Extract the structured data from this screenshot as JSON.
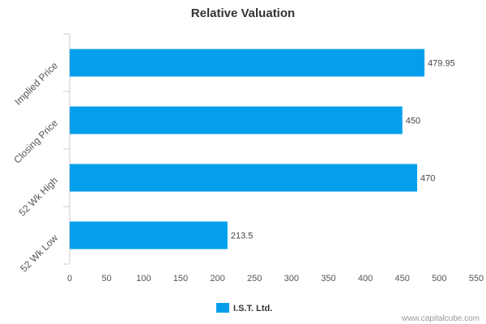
{
  "chart_data": {
    "type": "bar",
    "orientation": "horizontal",
    "title": "Relative Valuation",
    "categories": [
      "Implied Price",
      "Closing Price",
      "52 Wk High",
      "52 Wk Low"
    ],
    "series": [
      {
        "name": "I.S.T. Ltd.",
        "values": [
          479.95,
          450,
          470,
          213.5
        ],
        "labels": [
          "479.95",
          "450",
          "470",
          "213.5"
        ],
        "color": "#039fec"
      }
    ],
    "xlim": [
      0,
      550
    ],
    "xticks": [
      0,
      50,
      100,
      150,
      200,
      250,
      300,
      350,
      400,
      450,
      500,
      550
    ],
    "grid": false,
    "legend": "bottom-center"
  },
  "footer": {
    "credit": "www.capitalcube.com"
  },
  "colors": {
    "axis": "#cccccc",
    "text": "#555555"
  }
}
